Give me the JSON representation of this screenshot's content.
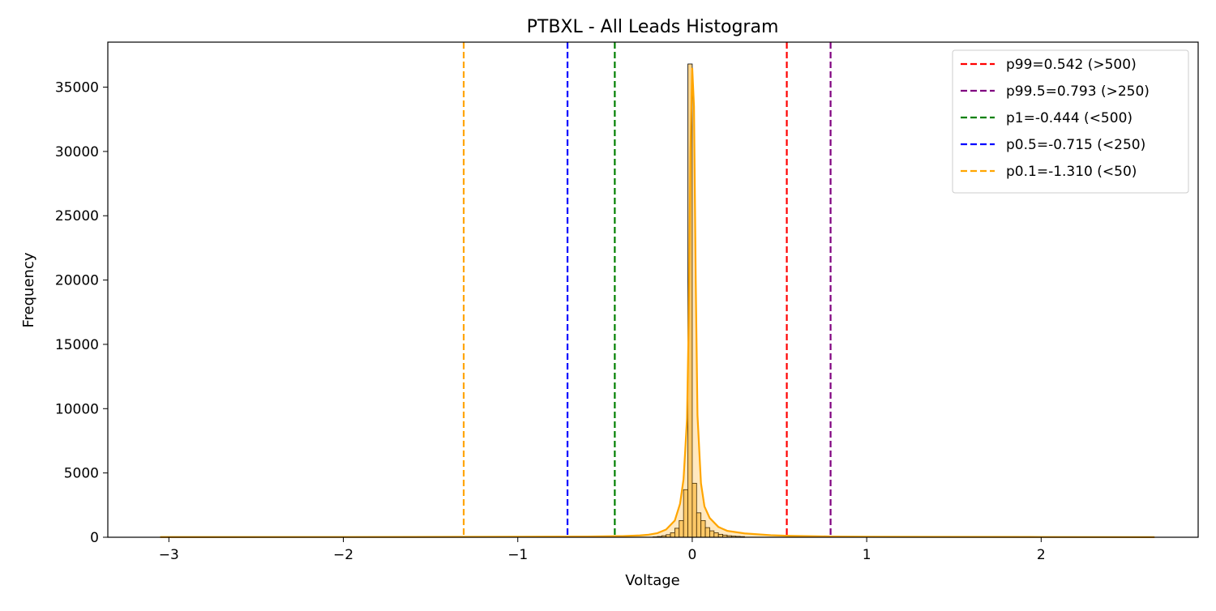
{
  "chart_data": {
    "type": "bar",
    "title": "PTBXL - All Leads Histogram",
    "xlabel": "Voltage",
    "ylabel": "Frequency",
    "xlim": [
      -3.35,
      2.9
    ],
    "ylim": [
      0,
      38500
    ],
    "x_ticks": [
      -3,
      -2,
      -1,
      0,
      1,
      2
    ],
    "x_tick_labels": [
      "−3",
      "−2",
      "−1",
      "0",
      "1",
      "2"
    ],
    "y_ticks": [
      0,
      5000,
      10000,
      15000,
      20000,
      25000,
      30000,
      35000
    ],
    "y_tick_labels": [
      "0",
      "5000",
      "10000",
      "15000",
      "20000",
      "25000",
      "30000",
      "35000"
    ],
    "grid": false,
    "legend_position": "top-right",
    "colors": {
      "bar_fill": "#fdd48a",
      "bar_edge": "#000000",
      "kde_line": "#ffa500"
    },
    "histogram": {
      "bin_edges": [
        -0.225,
        -0.2,
        -0.175,
        -0.15,
        -0.125,
        -0.1,
        -0.075,
        -0.05,
        -0.025,
        0.0,
        0.025,
        0.05,
        0.075,
        0.1,
        0.125,
        0.15,
        0.175,
        0.2,
        0.225,
        0.25,
        0.275,
        0.3
      ],
      "counts": [
        30,
        60,
        120,
        200,
        350,
        700,
        1300,
        3700,
        36800,
        4200,
        1900,
        1300,
        750,
        500,
        350,
        230,
        170,
        120,
        90,
        70,
        50
      ]
    },
    "kde": {
      "x": [
        -3.05,
        -2.0,
        -1.31,
        -1.0,
        -0.6,
        -0.4,
        -0.3,
        -0.25,
        -0.2,
        -0.15,
        -0.1,
        -0.07,
        -0.05,
        -0.04,
        -0.03,
        -0.02,
        -0.01,
        0.0,
        0.01,
        0.02,
        0.03,
        0.05,
        0.07,
        0.1,
        0.15,
        0.2,
        0.3,
        0.45,
        0.55,
        0.8,
        1.0,
        2.0,
        2.65
      ],
      "y": [
        15,
        20,
        30,
        40,
        60,
        90,
        140,
        200,
        320,
        600,
        1300,
        2600,
        4500,
        6800,
        9200,
        17000,
        30000,
        36500,
        33500,
        20000,
        9500,
        4200,
        2400,
        1500,
        800,
        500,
        300,
        160,
        110,
        60,
        40,
        20,
        10
      ]
    },
    "percentile_lines": [
      {
        "label": "p99=0.542 (>500)",
        "x": 0.542,
        "color": "#ff0000"
      },
      {
        "label": "p99.5=0.793 (>250)",
        "x": 0.793,
        "color": "#800080"
      },
      {
        "label": "p1=-0.444 (<500)",
        "x": -0.444,
        "color": "#008000"
      },
      {
        "label": "p0.5=-0.715 (<250)",
        "x": -0.715,
        "color": "#0000ff"
      },
      {
        "label": "p0.1=-1.310 (<50)",
        "x": -1.31,
        "color": "#ffa500"
      }
    ]
  }
}
